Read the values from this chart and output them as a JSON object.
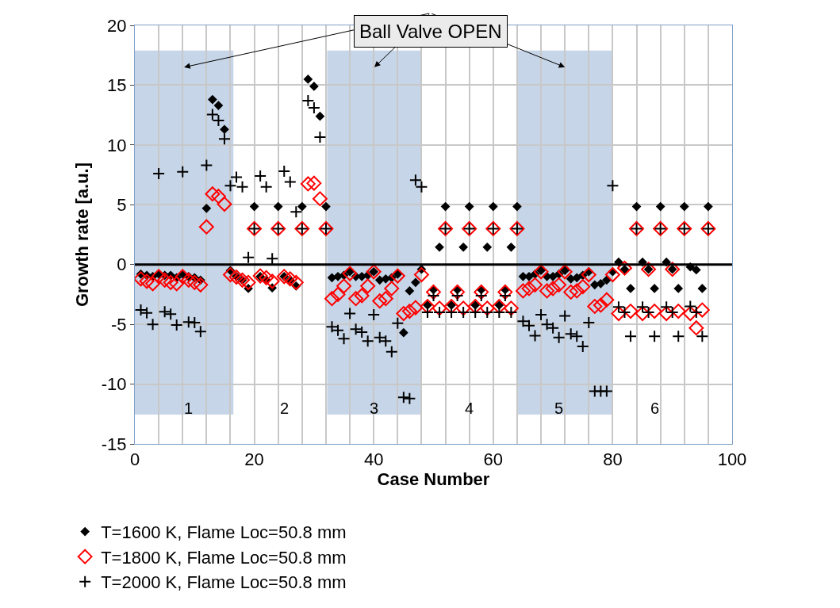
{
  "chart_data": {
    "type": "scatter",
    "xlabel": "Case Number",
    "ylabel": "Growth rate [a.u.]",
    "x": [
      1,
      2,
      3,
      4,
      5,
      6,
      7,
      8,
      9,
      10,
      11,
      12,
      13,
      14,
      15,
      16,
      17,
      18,
      19,
      20,
      21,
      22,
      23,
      24,
      25,
      26,
      27,
      28,
      29,
      30,
      31,
      32,
      33,
      34,
      35,
      36,
      37,
      38,
      39,
      40,
      41,
      42,
      43,
      44,
      45,
      46,
      47,
      48,
      49,
      50,
      51,
      52,
      53,
      54,
      55,
      56,
      57,
      58,
      59,
      60,
      61,
      62,
      63,
      64,
      65,
      66,
      67,
      68,
      69,
      70,
      71,
      72,
      73,
      74,
      75,
      76,
      77,
      78,
      79,
      80,
      81,
      82,
      83,
      84,
      85,
      86,
      87,
      88,
      89,
      90,
      91,
      92,
      93,
      94,
      95,
      96
    ],
    "series": [
      {
        "name": "T=1600 K, Flame Loc=50.8 mm",
        "color": "#000000",
        "marker": "diamond",
        "values": [
          -0.8,
          -0.9,
          -1.0,
          -0.8,
          -0.9,
          -0.9,
          -1.1,
          -0.8,
          -1.0,
          -1.1,
          -1.3,
          4.7,
          13.8,
          13.3,
          11.3,
          -0.5,
          -1.0,
          -1.3,
          -2.0,
          4.85,
          -1.0,
          -1.3,
          -1.95,
          4.85,
          -1.0,
          -1.3,
          -1.8,
          4.85,
          15.5,
          14.9,
          12.4,
          4.85,
          -1.1,
          -1.0,
          -0.9,
          -0.6,
          -1.0,
          -1.0,
          -0.9,
          -0.6,
          -1.3,
          -1.2,
          -1.1,
          -0.8,
          -5.7,
          -2.2,
          -1.5,
          -0.4,
          -3.4,
          -2.1,
          1.45,
          4.85,
          -3.4,
          -2.1,
          1.45,
          4.85,
          -3.4,
          -2.1,
          1.45,
          4.85,
          -3.4,
          -2.1,
          1.45,
          4.85,
          -1.0,
          -1.0,
          -0.8,
          -0.5,
          -1.0,
          -1.0,
          -0.8,
          -0.5,
          -1.2,
          -1.1,
          -0.9,
          -0.6,
          -1.7,
          -1.6,
          -1.3,
          -0.6,
          0.2,
          -0.4,
          -2.0,
          4.85,
          0.2,
          -0.4,
          -2.0,
          4.85,
          0.2,
          -0.4,
          -2.0,
          4.85,
          -0.2,
          -0.45,
          -2.0,
          4.85
        ]
      },
      {
        "name": "T=1800 K, Flame Loc=50.8 mm",
        "color": "#ff0000",
        "marker": "diamond-open",
        "values": [
          -1.2,
          -1.4,
          -1.6,
          -1.0,
          -1.3,
          -1.5,
          -1.6,
          -1.0,
          -1.3,
          -1.5,
          -1.7,
          3.15,
          5.9,
          5.7,
          5.05,
          -0.85,
          -1.05,
          -1.3,
          -1.5,
          3.0,
          -0.95,
          -1.1,
          -1.4,
          3.0,
          -1.0,
          -1.2,
          -1.5,
          3.0,
          6.75,
          6.8,
          5.5,
          3.0,
          -2.85,
          -2.5,
          -1.8,
          -0.75,
          -2.85,
          -2.6,
          -1.8,
          -0.6,
          -3.05,
          -2.85,
          -2.0,
          -0.95,
          -4.1,
          -3.9,
          -3.6,
          -0.85,
          -3.5,
          -2.3,
          -3.65,
          3.0,
          -3.5,
          -2.3,
          -3.65,
          3.0,
          -3.5,
          -2.3,
          -3.65,
          3.0,
          -3.5,
          -2.3,
          -3.65,
          3.0,
          -2.2,
          -2.0,
          -1.7,
          -0.6,
          -2.2,
          -2.0,
          -1.7,
          -0.6,
          -2.3,
          -2.2,
          -1.85,
          -0.85,
          -3.5,
          -3.4,
          -2.95,
          -0.85,
          -4.1,
          -0.3,
          -3.9,
          3.0,
          -4.1,
          -0.4,
          -3.9,
          3.0,
          -4.1,
          -0.4,
          -3.9,
          3.0,
          -4.1,
          -5.3,
          -3.8,
          3.0
        ]
      },
      {
        "name": "T=2000 K, Flame Loc=50.8 mm",
        "color": "#000000",
        "marker": "cross",
        "values": [
          -3.8,
          -4.05,
          -5.0,
          7.6,
          -3.95,
          -4.15,
          -5.05,
          7.75,
          -4.8,
          -4.85,
          -5.6,
          8.3,
          12.55,
          12.05,
          10.5,
          6.6,
          7.3,
          6.5,
          0.6,
          3.0,
          7.4,
          6.5,
          0.5,
          3.0,
          7.8,
          6.9,
          4.4,
          3.0,
          13.7,
          13.1,
          10.65,
          3.0,
          -5.2,
          -5.5,
          -6.2,
          -4.1,
          -5.4,
          -5.65,
          -6.4,
          -4.2,
          -6.1,
          -6.4,
          -7.3,
          -4.9,
          -11.1,
          -11.2,
          7.05,
          6.5,
          -4.0,
          -2.6,
          -4.0,
          3.0,
          -4.0,
          -2.6,
          -4.0,
          3.0,
          -4.0,
          -2.6,
          -4.0,
          3.0,
          -4.0,
          -2.6,
          -4.0,
          3.0,
          -4.75,
          -5.1,
          -5.95,
          -4.2,
          -5.0,
          -5.3,
          -6.1,
          -4.3,
          -5.8,
          -6.0,
          -6.85,
          -4.85,
          -10.6,
          -10.6,
          -10.6,
          6.6,
          -3.55,
          -4.0,
          -6.0,
          3.0,
          -3.55,
          -4.0,
          -6.0,
          3.0,
          -3.55,
          -4.0,
          -6.0,
          3.0,
          -3.5,
          -4.0,
          -6.0,
          3.0
        ]
      }
    ],
    "xlim": [
      0,
      100
    ],
    "xticks": [
      0,
      {
        "value": 4,
        "label": null
      },
      {
        "value": 8,
        "label": null
      },
      {
        "value": 12,
        "label": null
      },
      {
        "value": 16,
        "label": null
      },
      20,
      {
        "value": 24,
        "label": null
      },
      {
        "value": 28,
        "label": null
      },
      {
        "value": 32,
        "label": null
      },
      {
        "value": 36,
        "label": null
      },
      40,
      {
        "value": 44,
        "label": null
      },
      {
        "value": 48,
        "label": null
      },
      {
        "value": 52,
        "label": null
      },
      {
        "value": 56,
        "label": null
      },
      60,
      {
        "value": 64,
        "label": null
      },
      {
        "value": 68,
        "label": null
      },
      {
        "value": 72,
        "label": null
      },
      {
        "value": 76,
        "label": null
      },
      80,
      {
        "value": 84,
        "label": null
      },
      {
        "value": 88,
        "label": null
      },
      {
        "value": 92,
        "label": null
      },
      {
        "value": 96,
        "label": null
      },
      100
    ],
    "ylim": [
      -15,
      20
    ],
    "yticks": [
      -15,
      -10,
      -5,
      0,
      5,
      10,
      15,
      20
    ],
    "grid": true,
    "legend": "bottom",
    "ref_lines": [
      {
        "axis": "y",
        "value": 0,
        "color": "#000000"
      }
    ],
    "bands": [
      {
        "axis": "x",
        "from": 0,
        "to": 16.5,
        "color": "#c6d5e7"
      },
      {
        "axis": "x",
        "from": 32.2,
        "to": 48,
        "color": "#c6d5e7"
      },
      {
        "axis": "x",
        "from": 64,
        "to": 80,
        "color": "#c6d5e7"
      }
    ],
    "annotations": [
      "Ball Valve OPEN",
      "1",
      "2",
      "3",
      "4",
      "5",
      "6"
    ]
  }
}
